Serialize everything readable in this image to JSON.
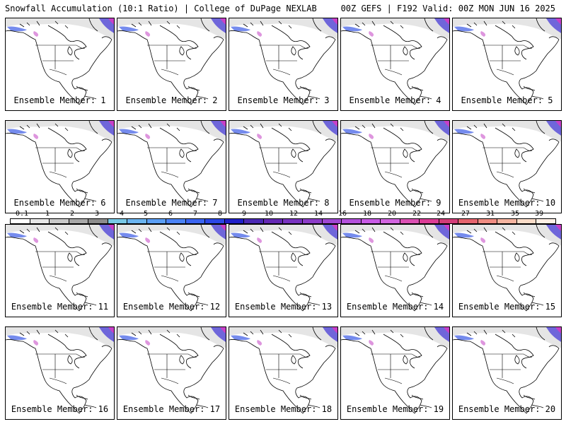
{
  "header": {
    "left": "Snowfall Accumulation (10:1 Ratio) | College of DuPage NEXLAB",
    "right": "00Z GEFS | F192 Valid: 00Z MON JUN 16 2025"
  },
  "members": [
    "Ensemble Member: 1",
    "Ensemble Member: 2",
    "Ensemble Member: 3",
    "Ensemble Member: 4",
    "Ensemble Member: 5",
    "Ensemble Member: 6",
    "Ensemble Member: 7",
    "Ensemble Member: 8",
    "Ensemble Member: 9",
    "Ensemble Member: 10",
    "Ensemble Member: 11",
    "Ensemble Member: 12",
    "Ensemble Member: 13",
    "Ensemble Member: 14",
    "Ensemble Member: 15",
    "Ensemble Member: 16",
    "Ensemble Member: 17",
    "Ensemble Member: 18",
    "Ensemble Member: 19",
    "Ensemble Member: 20"
  ],
  "legend": {
    "labels": [
      "0.1",
      "1",
      "2",
      "3",
      "4",
      "5",
      "6",
      "7",
      "8",
      "9",
      "10",
      "12",
      "14",
      "16",
      "18",
      "20",
      "22",
      "24",
      "27",
      "31",
      "35",
      "39"
    ],
    "colors": [
      "#ffffff",
      "#e6e6e6",
      "#c8c8c8",
      "#a8a8a8",
      "#8c8c8c",
      "#78c8e6",
      "#6ab4f0",
      "#5a9ef5",
      "#4a82f5",
      "#3a64f0",
      "#2a46e6",
      "#2020c8",
      "#4a28b4",
      "#6428b4",
      "#7832c0",
      "#8c3cc8",
      "#a046d2",
      "#b450dc",
      "#c85ae6",
      "#d264e0",
      "#dc50b4",
      "#dc3c96",
      "#d23c78",
      "#e6646e",
      "#f08c82",
      "#f5b4a0",
      "#fadcc8",
      "#fff0e6"
    ]
  }
}
